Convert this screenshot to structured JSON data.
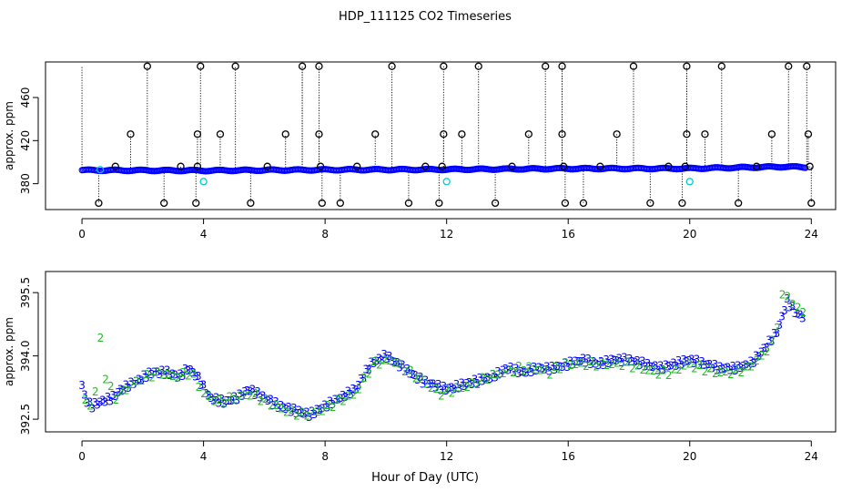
{
  "title": "HDP_111125  CO2 Timeseries",
  "xlabel": "Hour of Day (UTC)",
  "colors": {
    "outlier": "#000000",
    "blue": "#0000ff",
    "cyan": "#00cccc",
    "green": "#22bb22",
    "axis": "#000000"
  },
  "chart_data": [
    {
      "type": "scatter",
      "panel": "top",
      "ylabel": "approx. ppm",
      "xlim": [
        -1.2,
        24.8
      ],
      "ylim": [
        356,
        493
      ],
      "xticks": [
        0,
        4,
        8,
        12,
        16,
        20,
        24
      ],
      "yticks": [
        380,
        420,
        460
      ],
      "ytick_labels": [
        "380",
        "420",
        "460"
      ],
      "xtick_labels": [
        "0",
        "4",
        "8",
        "12",
        "16",
        "20",
        "24"
      ],
      "baseline": [
        [
          0,
          392.5
        ],
        [
          4,
          392.2
        ],
        [
          8,
          392.9
        ],
        [
          12,
          393.2
        ],
        [
          16,
          394.0
        ],
        [
          20,
          394.1
        ],
        [
          23.2,
          395.8
        ],
        [
          23.8,
          395.2
        ]
      ],
      "outliers": [
        {
          "x": 0.55,
          "y": 362
        },
        {
          "x": 1.1,
          "y": 396
        },
        {
          "x": 1.6,
          "y": 426
        },
        {
          "x": 2.15,
          "y": 489
        },
        {
          "x": 2.7,
          "y": 362
        },
        {
          "x": 3.25,
          "y": 396
        },
        {
          "x": 3.8,
          "y": 426
        },
        {
          "x": 3.9,
          "y": 489
        },
        {
          "x": 3.75,
          "y": 362
        },
        {
          "x": 3.8,
          "y": 396
        },
        {
          "x": 4.55,
          "y": 426
        },
        {
          "x": 5.05,
          "y": 489
        },
        {
          "x": 5.55,
          "y": 362
        },
        {
          "x": 6.1,
          "y": 396
        },
        {
          "x": 6.7,
          "y": 426
        },
        {
          "x": 7.25,
          "y": 489
        },
        {
          "x": 7.8,
          "y": 489
        },
        {
          "x": 7.8,
          "y": 426
        },
        {
          "x": 7.85,
          "y": 396
        },
        {
          "x": 7.9,
          "y": 362
        },
        {
          "x": 8.5,
          "y": 362
        },
        {
          "x": 9.05,
          "y": 396
        },
        {
          "x": 9.65,
          "y": 426
        },
        {
          "x": 10.2,
          "y": 489
        },
        {
          "x": 10.75,
          "y": 362
        },
        {
          "x": 11.3,
          "y": 396
        },
        {
          "x": 11.75,
          "y": 362
        },
        {
          "x": 11.85,
          "y": 396
        },
        {
          "x": 11.9,
          "y": 426
        },
        {
          "x": 11.9,
          "y": 489
        },
        {
          "x": 12.5,
          "y": 426
        },
        {
          "x": 13.05,
          "y": 489
        },
        {
          "x": 13.6,
          "y": 362
        },
        {
          "x": 14.15,
          "y": 396
        },
        {
          "x": 14.7,
          "y": 426
        },
        {
          "x": 15.25,
          "y": 489
        },
        {
          "x": 15.8,
          "y": 489
        },
        {
          "x": 15.8,
          "y": 426
        },
        {
          "x": 15.85,
          "y": 396
        },
        {
          "x": 15.9,
          "y": 362
        },
        {
          "x": 16.5,
          "y": 362
        },
        {
          "x": 17.05,
          "y": 396
        },
        {
          "x": 17.6,
          "y": 426
        },
        {
          "x": 18.15,
          "y": 489
        },
        {
          "x": 18.7,
          "y": 362
        },
        {
          "x": 19.3,
          "y": 396
        },
        {
          "x": 19.75,
          "y": 362
        },
        {
          "x": 19.85,
          "y": 396
        },
        {
          "x": 19.9,
          "y": 426
        },
        {
          "x": 19.9,
          "y": 489
        },
        {
          "x": 20.5,
          "y": 426
        },
        {
          "x": 21.05,
          "y": 489
        },
        {
          "x": 21.6,
          "y": 362
        },
        {
          "x": 22.2,
          "y": 396
        },
        {
          "x": 22.7,
          "y": 426
        },
        {
          "x": 23.25,
          "y": 489
        },
        {
          "x": 23.85,
          "y": 489
        },
        {
          "x": 23.9,
          "y": 426
        },
        {
          "x": 23.95,
          "y": 396
        },
        {
          "x": 24.0,
          "y": 362
        }
      ],
      "cyan_points": [
        {
          "x": 0.6,
          "y": 393
        },
        {
          "x": 4.0,
          "y": 382
        },
        {
          "x": 12.0,
          "y": 382
        },
        {
          "x": 20.0,
          "y": 382
        }
      ]
    },
    {
      "type": "scatter",
      "panel": "bottom",
      "ylabel": "approx. ppm",
      "xlim": [
        -1.2,
        24.8
      ],
      "ylim": [
        392.2,
        396.0
      ],
      "xticks": [
        0,
        4,
        8,
        12,
        16,
        20,
        24
      ],
      "yticks": [
        392.5,
        394.0,
        395.5
      ],
      "ytick_labels": [
        "392.5",
        "394.0",
        "395.5"
      ],
      "xtick_labels": [
        "0",
        "4",
        "8",
        "12",
        "16",
        "20",
        "24"
      ],
      "marker_labels": [
        "2",
        "3"
      ],
      "series": [
        {
          "marker": "3",
          "values": [
            [
              0.0,
              393.3
            ],
            [
              0.1,
              393.0
            ],
            [
              0.3,
              392.8
            ],
            [
              0.6,
              392.9
            ],
            [
              1.0,
              393.0
            ],
            [
              1.3,
              393.2
            ],
            [
              1.8,
              393.4
            ],
            [
              2.3,
              393.6
            ],
            [
              2.8,
              393.6
            ],
            [
              3.2,
              393.5
            ],
            [
              3.5,
              393.7
            ],
            [
              3.8,
              393.5
            ],
            [
              4.2,
              393.0
            ],
            [
              4.7,
              392.9
            ],
            [
              5.1,
              393.0
            ],
            [
              5.5,
              393.2
            ],
            [
              6.0,
              393.0
            ],
            [
              6.5,
              392.8
            ],
            [
              7.0,
              392.7
            ],
            [
              7.5,
              392.6
            ],
            [
              8.0,
              392.8
            ],
            [
              8.5,
              393.0
            ],
            [
              9.0,
              393.2
            ],
            [
              9.5,
              393.8
            ],
            [
              10.0,
              394.0
            ],
            [
              10.4,
              393.8
            ],
            [
              10.8,
              393.6
            ],
            [
              11.2,
              393.4
            ],
            [
              11.6,
              393.3
            ],
            [
              12.0,
              393.2
            ],
            [
              12.5,
              393.3
            ],
            [
              13.0,
              393.4
            ],
            [
              13.5,
              393.5
            ],
            [
              14.0,
              393.7
            ],
            [
              14.5,
              393.6
            ],
            [
              15.0,
              393.7
            ],
            [
              15.5,
              393.7
            ],
            [
              16.0,
              393.8
            ],
            [
              16.5,
              393.9
            ],
            [
              17.0,
              393.8
            ],
            [
              17.5,
              393.9
            ],
            [
              18.0,
              393.9
            ],
            [
              18.5,
              393.8
            ],
            [
              19.0,
              393.7
            ],
            [
              19.5,
              393.8
            ],
            [
              20.0,
              393.9
            ],
            [
              20.5,
              393.8
            ],
            [
              21.0,
              393.7
            ],
            [
              21.5,
              393.7
            ],
            [
              22.0,
              393.8
            ],
            [
              22.5,
              394.2
            ],
            [
              22.9,
              394.6
            ],
            [
              23.2,
              395.3
            ],
            [
              23.5,
              395.0
            ],
            [
              23.8,
              394.9
            ]
          ]
        },
        {
          "marker": "2",
          "values": [
            [
              0.1,
              392.9
            ],
            [
              0.4,
              392.8
            ],
            [
              0.6,
              394.5
            ],
            [
              0.7,
              393.6
            ],
            [
              1.1,
              393.0
            ],
            [
              1.6,
              393.3
            ],
            [
              2.1,
              393.5
            ],
            [
              2.6,
              393.6
            ],
            [
              3.0,
              393.5
            ],
            [
              3.6,
              393.6
            ],
            [
              4.0,
              393.1
            ],
            [
              4.5,
              392.9
            ],
            [
              5.0,
              393.0
            ],
            [
              5.6,
              393.1
            ],
            [
              6.1,
              392.9
            ],
            [
              6.7,
              392.7
            ],
            [
              7.3,
              392.6
            ],
            [
              7.9,
              392.7
            ],
            [
              8.4,
              392.9
            ],
            [
              9.0,
              393.1
            ],
            [
              9.6,
              393.8
            ],
            [
              10.2,
              393.9
            ],
            [
              10.6,
              393.7
            ],
            [
              11.0,
              393.5
            ],
            [
              11.4,
              393.3
            ],
            [
              11.8,
              393.1
            ],
            [
              12.3,
              393.2
            ],
            [
              12.8,
              393.3
            ],
            [
              13.4,
              393.5
            ],
            [
              13.9,
              393.6
            ],
            [
              14.4,
              393.7
            ],
            [
              14.9,
              393.7
            ],
            [
              15.4,
              393.6
            ],
            [
              15.9,
              393.8
            ],
            [
              16.4,
              393.8
            ],
            [
              16.9,
              393.8
            ],
            [
              17.4,
              393.8
            ],
            [
              17.9,
              393.8
            ],
            [
              18.4,
              393.7
            ],
            [
              18.9,
              393.6
            ],
            [
              19.4,
              393.6
            ],
            [
              19.9,
              393.8
            ],
            [
              20.4,
              393.7
            ],
            [
              20.9,
              393.6
            ],
            [
              21.4,
              393.6
            ],
            [
              21.9,
              393.7
            ],
            [
              22.4,
              394.0
            ],
            [
              22.8,
              394.4
            ],
            [
              23.1,
              395.6
            ],
            [
              23.4,
              395.2
            ],
            [
              23.9,
              395.0
            ]
          ]
        }
      ]
    }
  ]
}
